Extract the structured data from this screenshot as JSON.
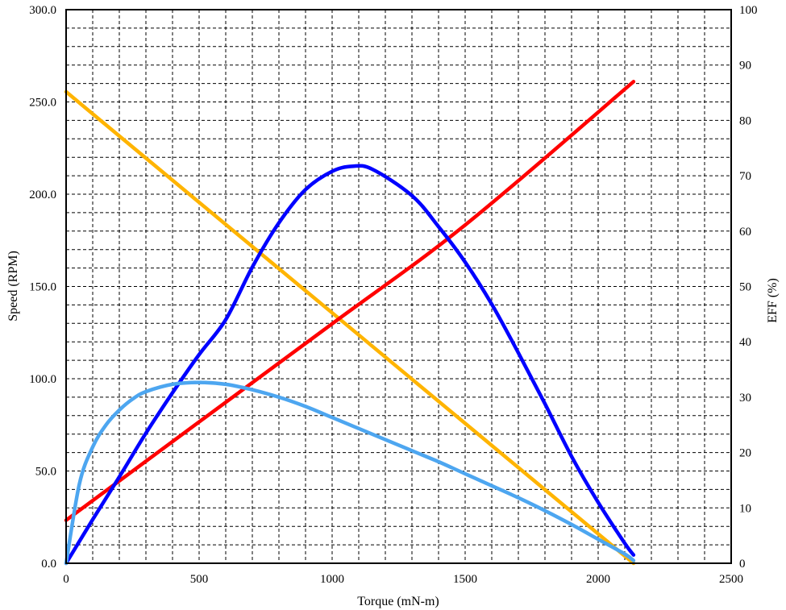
{
  "chart_data": {
    "type": "line",
    "title": "",
    "xlabel": "Torque (mN-m)",
    "ylabel_left": "Speed (RPM)",
    "ylabel_right": "EFF (%)",
    "xlim": [
      0,
      2500
    ],
    "ylim_left": [
      0,
      300
    ],
    "ylim_right": [
      0,
      100
    ],
    "x_ticks": [
      "0",
      "500",
      "1000",
      "1500",
      "2000",
      "2500"
    ],
    "y_left_ticks": [
      "0.0",
      "50.0",
      "100.0",
      "150.0",
      "200.0",
      "250.0",
      "300.0"
    ],
    "y_right_ticks": [
      "0",
      "10",
      "20",
      "30",
      "40",
      "50",
      "60",
      "70",
      "80",
      "90",
      "100"
    ],
    "grid": true,
    "series": [
      {
        "axis": "left",
        "color": "#ffb400",
        "points": [
          [
            0,
            255.5
          ],
          [
            500,
            195.6
          ],
          [
            1000,
            135.7
          ],
          [
            1500,
            75.8
          ],
          [
            2133,
            0
          ]
        ]
      },
      {
        "axis": "left",
        "color": "#ff0000",
        "points": [
          [
            0,
            23.3
          ],
          [
            500,
            76.6
          ],
          [
            1000,
            129.8
          ],
          [
            1500,
            183.3
          ],
          [
            2133,
            261.0
          ]
        ]
      },
      {
        "axis": "right",
        "color": "#0000ff",
        "points": [
          [
            0,
            0
          ],
          [
            100,
            7.9
          ],
          [
            200,
            15.6
          ],
          [
            300,
            23.5
          ],
          [
            400,
            30.8
          ],
          [
            500,
            37.7
          ],
          [
            600,
            44.0
          ],
          [
            700,
            53.5
          ],
          [
            800,
            61.5
          ],
          [
            900,
            67.5
          ],
          [
            1000,
            70.8
          ],
          [
            1075,
            71.7
          ],
          [
            1150,
            71.2
          ],
          [
            1300,
            66.4
          ],
          [
            1400,
            60.8
          ],
          [
            1500,
            54.4
          ],
          [
            1600,
            46.8
          ],
          [
            1700,
            38.0
          ],
          [
            1800,
            28.8
          ],
          [
            1900,
            19.3
          ],
          [
            2000,
            11.0
          ],
          [
            2100,
            3.6
          ],
          [
            2133,
            1.5
          ]
        ]
      },
      {
        "axis": "left",
        "color": "#4da6f0",
        "points": [
          [
            0,
            0
          ],
          [
            50,
            43
          ],
          [
            100,
            63
          ],
          [
            150,
            75
          ],
          [
            200,
            83
          ],
          [
            250,
            89
          ],
          [
            300,
            93
          ],
          [
            400,
            97
          ],
          [
            500,
            98
          ],
          [
            600,
            97
          ],
          [
            700,
            94
          ],
          [
            800,
            90
          ],
          [
            900,
            85
          ],
          [
            1000,
            79
          ],
          [
            1100,
            73
          ],
          [
            1200,
            67
          ],
          [
            1300,
            61
          ],
          [
            1400,
            55
          ],
          [
            1500,
            48.5
          ],
          [
            1600,
            42
          ],
          [
            1700,
            35.5
          ],
          [
            1800,
            28.5
          ],
          [
            1900,
            21
          ],
          [
            2000,
            13
          ],
          [
            2100,
            5
          ],
          [
            2133,
            1.5
          ]
        ]
      }
    ]
  }
}
